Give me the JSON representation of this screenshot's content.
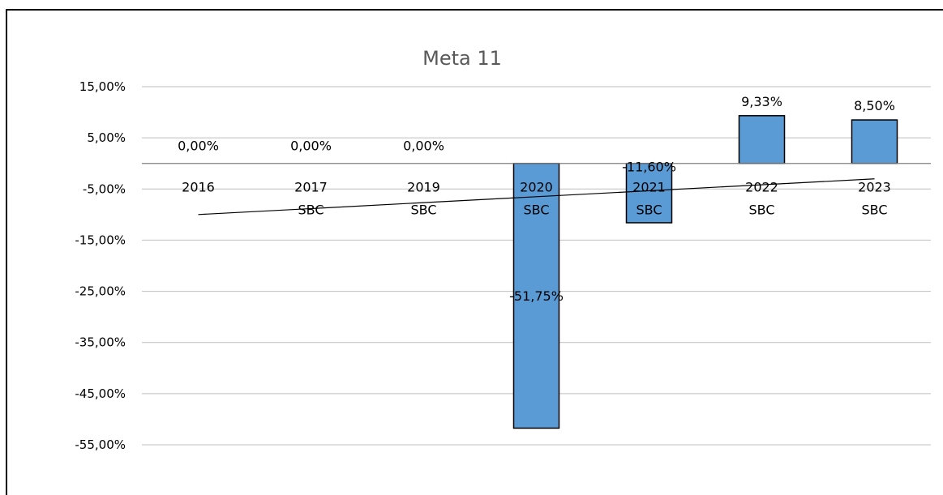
{
  "chart_data": {
    "type": "bar",
    "title": "Meta 11",
    "xlabel": "",
    "ylabel": "",
    "ylim": [
      -55,
      15
    ],
    "ytick_step": 10,
    "ytick_labels": [
      "15,00%",
      "5,00%",
      "-5,00%",
      "-15,00%",
      "-25,00%",
      "-35,00%",
      "-45,00%",
      "-55,00%"
    ],
    "categories": [
      {
        "year": "2016",
        "sub": ""
      },
      {
        "year": "2017",
        "sub": "SBC"
      },
      {
        "year": "2019",
        "sub": "SBC"
      },
      {
        "year": "2020",
        "sub": "SBC"
      },
      {
        "year": "2021",
        "sub": "SBC"
      },
      {
        "year": "2022",
        "sub": "SBC"
      },
      {
        "year": "2023",
        "sub": "SBC"
      }
    ],
    "values": [
      0.0,
      0.0,
      0.0,
      -51.75,
      -11.6,
      9.33,
      8.5
    ],
    "data_labels": [
      "0,00%",
      "0,00%",
      "0,00%",
      "-51,75%",
      "-11,60%",
      "9,33%",
      "8,50%"
    ],
    "trendline": {
      "type": "linear",
      "visible": true
    },
    "grid": true,
    "legend": "none",
    "colors": {
      "bar_fill": "#5b9bd5",
      "bar_stroke": "#000000",
      "grid": "#bfbfbf",
      "title": "#595959",
      "trendline": "#000000"
    }
  }
}
